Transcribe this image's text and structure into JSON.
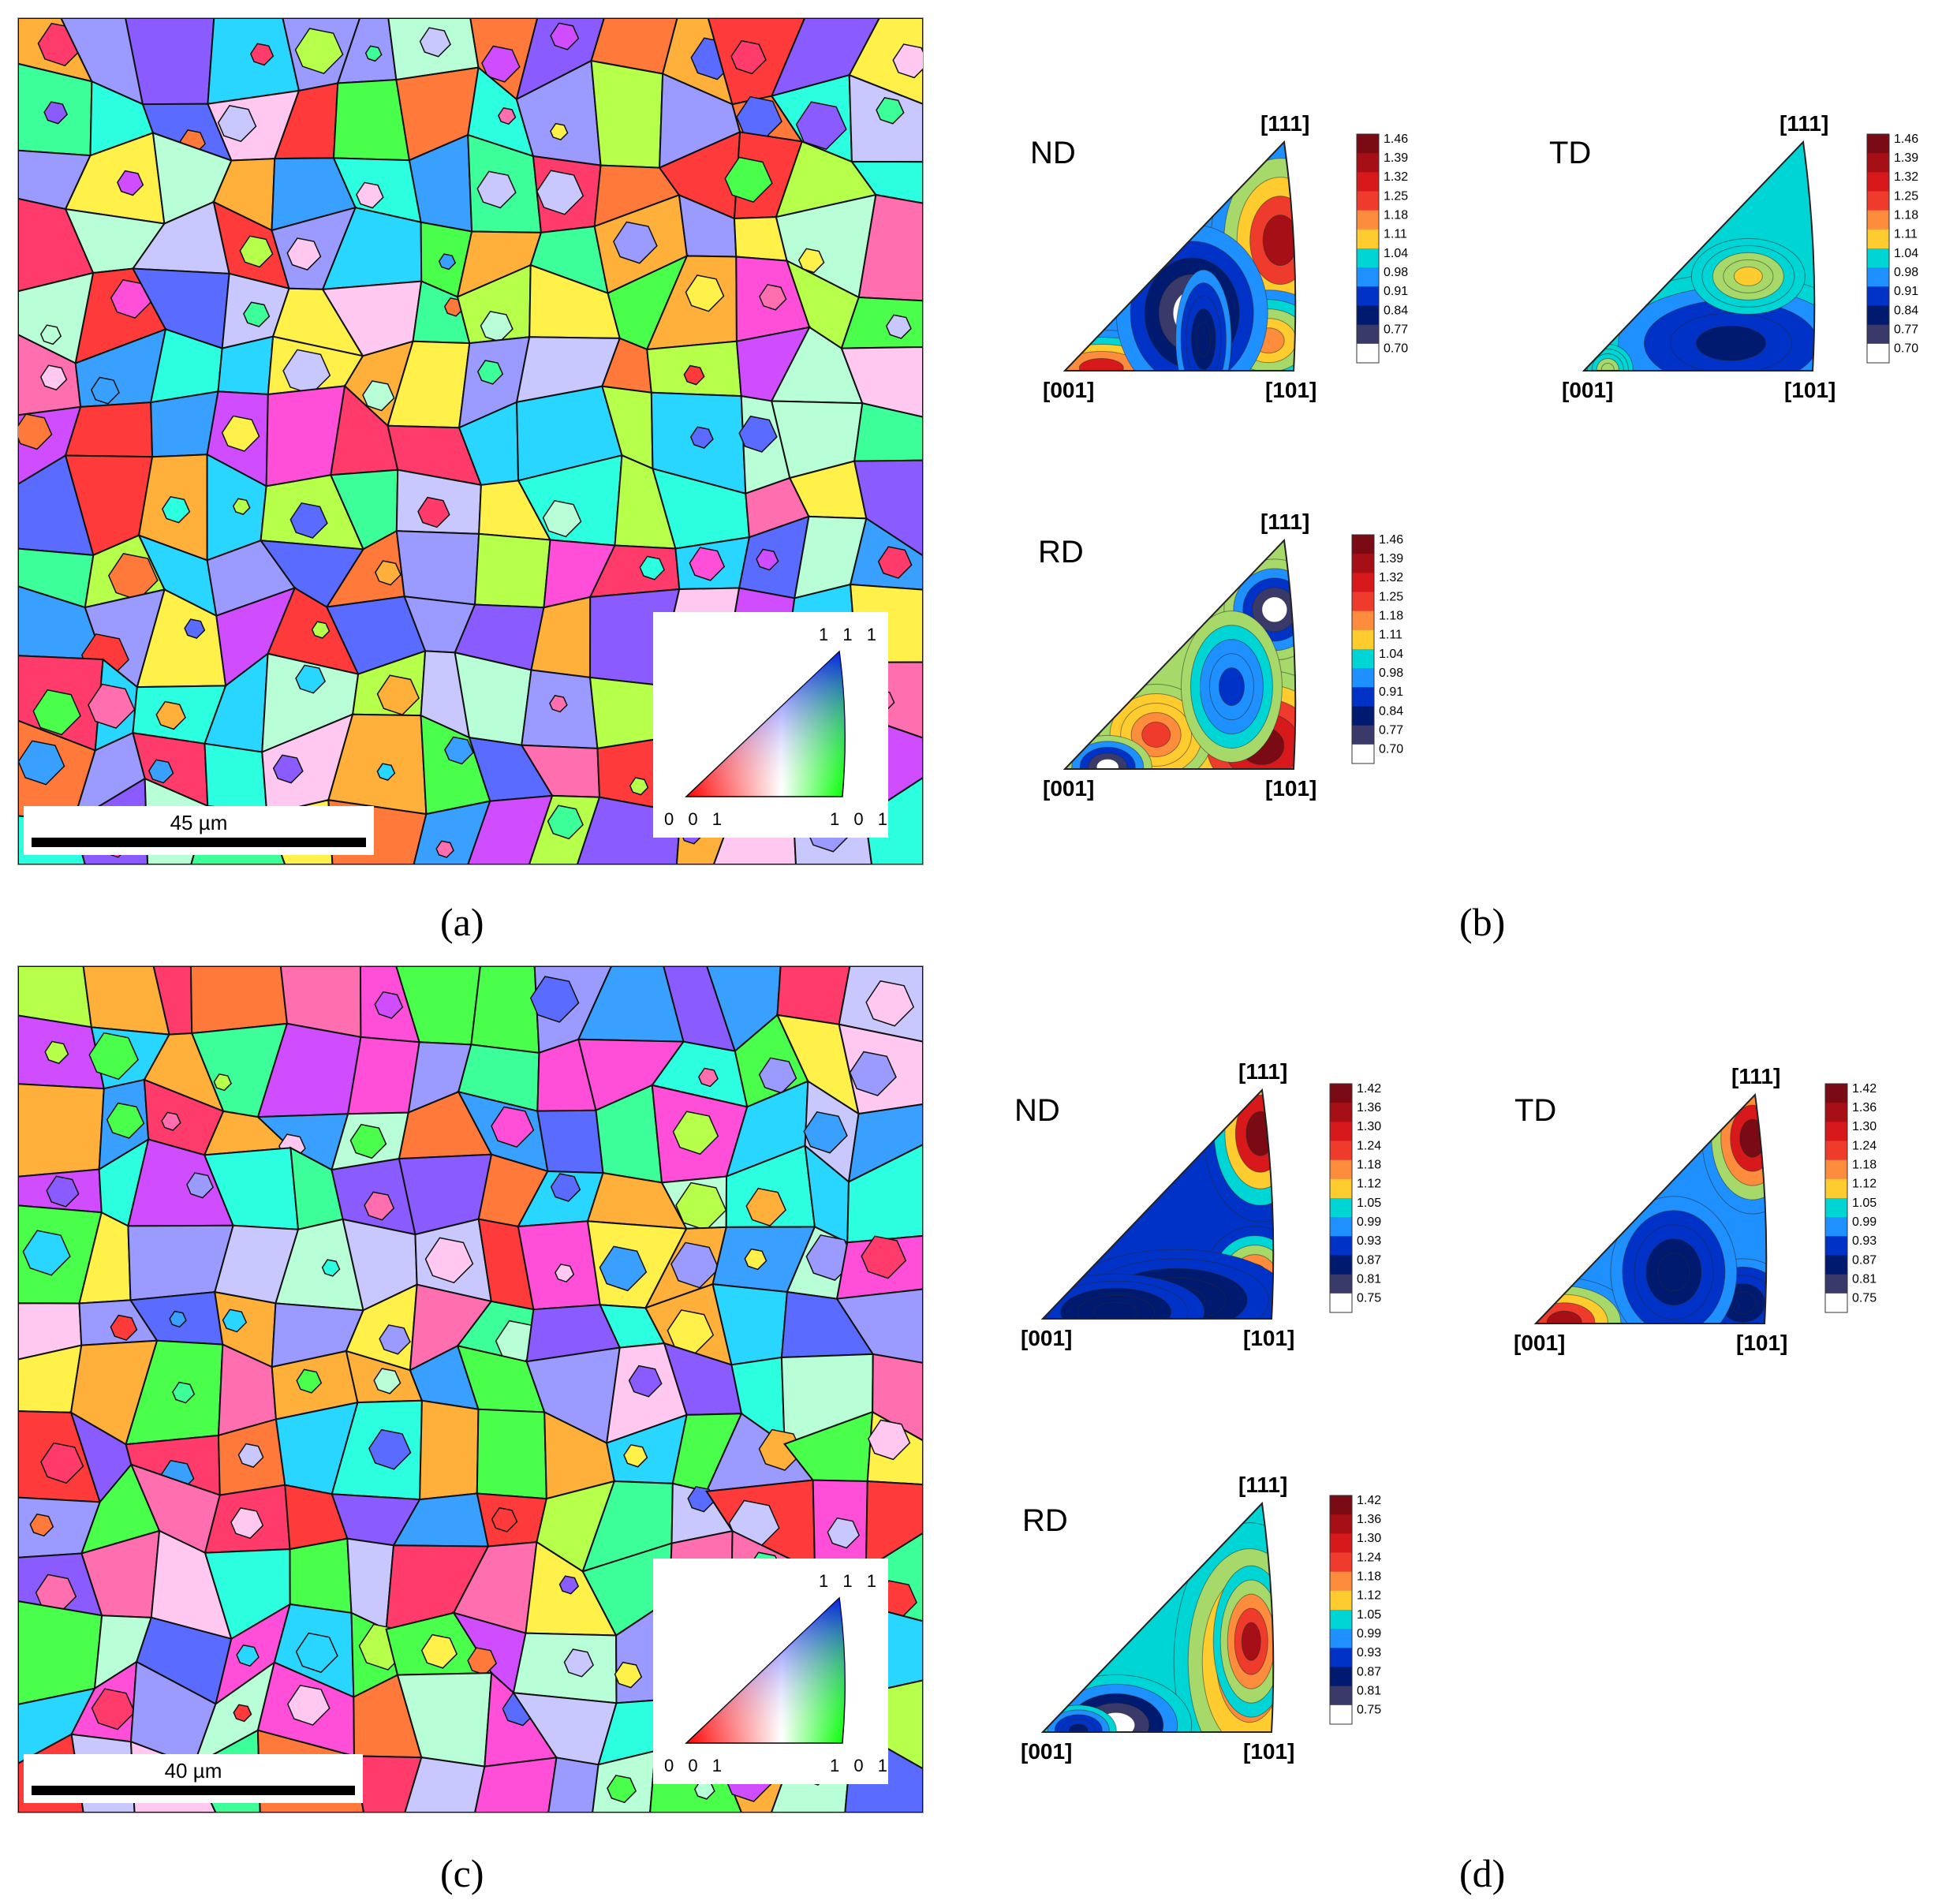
{
  "figure": {
    "panels": [
      {
        "id": "a",
        "label": "(a)",
        "type": "ebsd-ipf-map",
        "scale_bar": "45 µm",
        "key": {
          "top": "1 1 1",
          "left": "0 0 1",
          "right": "1 0 1"
        }
      },
      {
        "id": "b",
        "label": "(b)",
        "type": "inverse-pole-figures",
        "colorbar_ticks": [
          "1.46",
          "1.39",
          "1.32",
          "1.25",
          "1.18",
          "1.11",
          "1.04",
          "0.98",
          "0.91",
          "0.84",
          "0.77",
          "0.70"
        ],
        "figures": [
          {
            "dir": "ND",
            "corners": {
              "top": "[111]",
              "left": "[001]",
              "right": "[101]"
            }
          },
          {
            "dir": "TD",
            "corners": {
              "top": "[111]",
              "left": "[001]",
              "right": "[101]"
            }
          },
          {
            "dir": "RD",
            "corners": {
              "top": "[111]",
              "left": "[001]",
              "right": "[101]"
            }
          }
        ]
      },
      {
        "id": "c",
        "label": "(c)",
        "type": "ebsd-ipf-map",
        "scale_bar": "40 µm",
        "key": {
          "top": "1 1 1",
          "left": "0 0 1",
          "right": "1 0 1"
        }
      },
      {
        "id": "d",
        "label": "(d)",
        "type": "inverse-pole-figures",
        "colorbar_ticks": [
          "1.42",
          "1.36",
          "1.30",
          "1.24",
          "1.18",
          "1.12",
          "1.05",
          "0.99",
          "0.93",
          "0.87",
          "0.81",
          "0.75"
        ],
        "figures": [
          {
            "dir": "ND",
            "corners": {
              "top": "[111]",
              "left": "[001]",
              "right": "[101]"
            }
          },
          {
            "dir": "TD",
            "corners": {
              "top": "[111]",
              "left": "[001]",
              "right": "[101]"
            }
          },
          {
            "dir": "RD",
            "corners": {
              "top": "[111]",
              "left": "[001]",
              "right": "[101]"
            }
          }
        ]
      }
    ],
    "colors": {
      "pf_scale": [
        "#7a0a14",
        "#a50f15",
        "#d7191c",
        "#ef3b2c",
        "#fd8d3c",
        "#fecc2f",
        "#a6d96a",
        "#00d5d5",
        "#1e90ff",
        "#0032c8",
        "#001a70",
        "#3a3a6a",
        "#ffffff"
      ],
      "grain_palette": [
        "#ff3b6b",
        "#ff6fb0",
        "#ff4fd8",
        "#d04cff",
        "#8a5cff",
        "#5a6bff",
        "#3aa0ff",
        "#29d6ff",
        "#2bffe0",
        "#3dff9a",
        "#49ff4c",
        "#b6ff4a",
        "#fff04a",
        "#ffb03a",
        "#ff7a3a",
        "#ff3a3a",
        "#c8c8ff",
        "#b8ffd8",
        "#ffc8f0",
        "#9a9aff"
      ]
    }
  }
}
